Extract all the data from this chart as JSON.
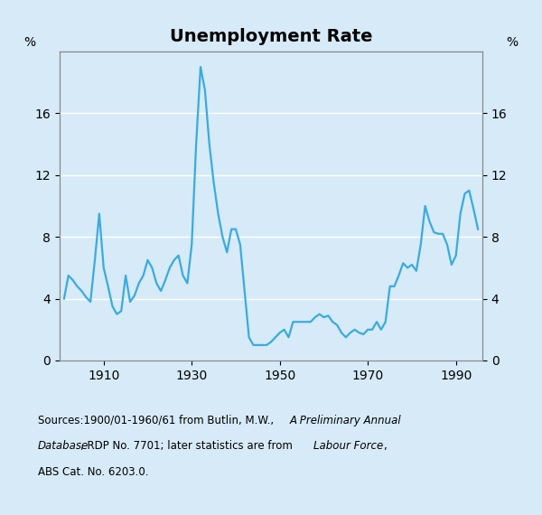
{
  "title": "Unemployment Rate",
  "line_color": "#3AABDC",
  "bg_color": "#D6EAF8",
  "ylim": [
    0,
    20
  ],
  "yticks": [
    0,
    4,
    8,
    12,
    16
  ],
  "xlim": [
    1900,
    1996
  ],
  "xticks": [
    1910,
    1930,
    1950,
    1970,
    1990
  ],
  "line_width": 1.6,
  "years": [
    1901,
    1902,
    1903,
    1904,
    1905,
    1906,
    1907,
    1908,
    1909,
    1910,
    1911,
    1912,
    1913,
    1914,
    1915,
    1916,
    1917,
    1918,
    1919,
    1920,
    1921,
    1922,
    1923,
    1924,
    1925,
    1926,
    1927,
    1928,
    1929,
    1930,
    1931,
    1932,
    1933,
    1934,
    1935,
    1936,
    1937,
    1938,
    1939,
    1940,
    1941,
    1942,
    1943,
    1944,
    1945,
    1946,
    1947,
    1948,
    1949,
    1950,
    1951,
    1952,
    1953,
    1954,
    1955,
    1956,
    1957,
    1958,
    1959,
    1960,
    1961,
    1962,
    1963,
    1964,
    1965,
    1966,
    1967,
    1968,
    1969,
    1970,
    1971,
    1972,
    1973,
    1974,
    1975,
    1976,
    1977,
    1978,
    1979,
    1980,
    1981,
    1982,
    1983,
    1984,
    1985,
    1986,
    1987,
    1988,
    1989,
    1990,
    1991,
    1992,
    1993,
    1994,
    1995
  ],
  "values": [
    4.0,
    5.5,
    5.2,
    4.8,
    4.5,
    4.1,
    3.8,
    6.5,
    9.5,
    6.0,
    4.8,
    3.5,
    3.0,
    3.2,
    5.5,
    3.8,
    4.2,
    5.0,
    5.5,
    6.5,
    6.0,
    5.0,
    4.5,
    5.2,
    6.0,
    6.5,
    6.8,
    5.5,
    5.0,
    7.5,
    14.0,
    19.0,
    17.5,
    14.0,
    11.5,
    9.5,
    8.0,
    7.0,
    8.5,
    8.5,
    7.5,
    4.5,
    1.5,
    1.0,
    1.0,
    1.0,
    1.0,
    1.2,
    1.5,
    1.8,
    2.0,
    1.5,
    2.5,
    2.5,
    2.5,
    2.5,
    2.5,
    2.8,
    3.0,
    2.8,
    2.9,
    2.5,
    2.3,
    1.8,
    1.5,
    1.8,
    2.0,
    1.8,
    1.7,
    2.0,
    2.0,
    2.5,
    2.0,
    2.5,
    4.8,
    4.8,
    5.5,
    6.3,
    6.0,
    6.2,
    5.8,
    7.5,
    10.0,
    9.0,
    8.3,
    8.2,
    8.2,
    7.5,
    6.2,
    6.8,
    9.5,
    10.8,
    11.0,
    9.8,
    8.5
  ]
}
